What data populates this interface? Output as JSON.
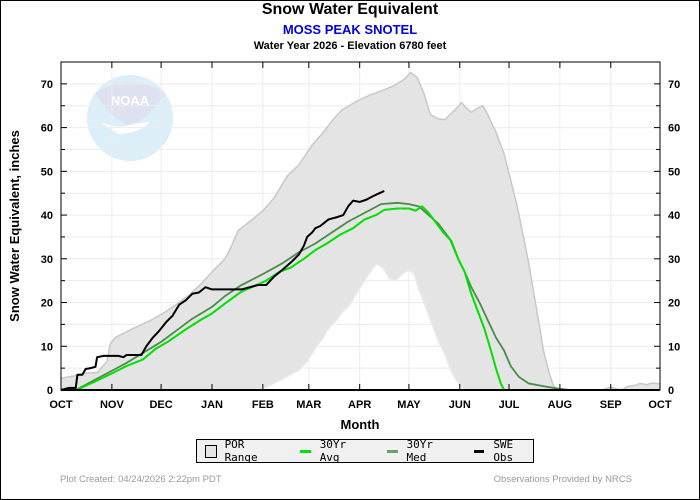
{
  "header": {
    "title": "Snow Water Equivalent",
    "station": "MOSS PEAK SNOTEL",
    "subtitle": "Water Year 2026 -  Elevation 6780 feet"
  },
  "footer": {
    "created": "Plot Created: 04/24/2026 2:22pm PDT",
    "provider": "Observations Provided by NRCS"
  },
  "watermark": {
    "text": "NOAA"
  },
  "colors": {
    "por": "#e4e4e4",
    "por_edge": "#c8c8c8",
    "avg": "#00e000",
    "med": "#4a8a4a",
    "obs": "#000000",
    "station_title": "#0000e0"
  },
  "legend": [
    {
      "label": "POR Range",
      "kind": "box"
    },
    {
      "label": "30Yr Avg",
      "kind": "line",
      "color": "#00e000"
    },
    {
      "label": "30Yr Med",
      "kind": "line",
      "color": "#6aa06a"
    },
    {
      "label": "SWE Obs",
      "kind": "line",
      "color": "#000000"
    }
  ],
  "chart_data": {
    "type": "area",
    "title": "Snow Water Equivalent",
    "xlabel": "Month",
    "ylabel": "Snow Water Equivalent, inches",
    "x_unit": "days since Oct 1",
    "xlim": [
      0,
      365
    ],
    "ylim": [
      0,
      75
    ],
    "grid": true,
    "legend_position": "bottom",
    "x_ticks": [
      {
        "day": 0,
        "label": "OCT"
      },
      {
        "day": 31,
        "label": "NOV"
      },
      {
        "day": 61,
        "label": "DEC"
      },
      {
        "day": 92,
        "label": "JAN"
      },
      {
        "day": 123,
        "label": "FEB"
      },
      {
        "day": 151,
        "label": "MAR"
      },
      {
        "day": 182,
        "label": "APR"
      },
      {
        "day": 212,
        "label": "MAY"
      },
      {
        "day": 243,
        "label": "JUN"
      },
      {
        "day": 273,
        "label": "JUL"
      },
      {
        "day": 304,
        "label": "AUG"
      },
      {
        "day": 335,
        "label": "SEP"
      },
      {
        "day": 365,
        "label": "OCT"
      }
    ],
    "y_ticks": [
      0,
      10,
      20,
      30,
      40,
      50,
      60,
      70
    ],
    "series": [
      {
        "name": "POR Range Max",
        "points": [
          [
            0,
            2.7
          ],
          [
            8,
            3.2
          ],
          [
            15,
            3.9
          ],
          [
            22,
            4.0
          ],
          [
            28,
            6.5
          ],
          [
            30,
            10.5
          ],
          [
            33,
            12
          ],
          [
            42,
            13.7
          ],
          [
            55,
            16
          ],
          [
            62,
            17.5
          ],
          [
            70,
            19.5
          ],
          [
            78,
            21.7
          ],
          [
            86,
            24.5
          ],
          [
            93,
            27.4
          ],
          [
            100,
            30
          ],
          [
            104,
            33
          ],
          [
            108,
            36.5
          ],
          [
            115,
            38.5
          ],
          [
            123,
            41
          ],
          [
            130,
            44
          ],
          [
            138,
            49
          ],
          [
            145,
            51.5
          ],
          [
            153,
            56
          ],
          [
            160,
            59
          ],
          [
            165,
            61.5
          ],
          [
            171,
            64
          ],
          [
            180,
            66
          ],
          [
            188,
            67.4
          ],
          [
            196,
            68.5
          ],
          [
            203,
            69.6
          ],
          [
            209,
            71
          ],
          [
            213,
            72.6
          ],
          [
            217,
            71.5
          ],
          [
            221,
            68
          ],
          [
            225,
            63
          ],
          [
            230,
            62
          ],
          [
            234,
            61.8
          ],
          [
            237,
            63
          ],
          [
            240,
            64
          ],
          [
            244,
            65.7
          ],
          [
            247,
            64.5
          ],
          [
            250,
            63.5
          ],
          [
            254,
            64.5
          ],
          [
            257,
            65
          ],
          [
            260,
            63
          ],
          [
            265,
            59
          ],
          [
            270,
            54
          ],
          [
            274,
            48
          ],
          [
            278,
            42
          ],
          [
            281,
            36.5
          ],
          [
            285,
            29
          ],
          [
            290,
            18
          ],
          [
            294,
            9
          ],
          [
            297,
            4.5
          ],
          [
            300,
            1
          ],
          [
            303,
            0
          ],
          [
            330,
            0
          ],
          [
            335,
            0.7
          ],
          [
            338,
            0.3
          ],
          [
            342,
            0
          ],
          [
            345,
            0.8
          ],
          [
            350,
            1.1
          ],
          [
            353,
            1.5
          ],
          [
            357,
            1.2
          ],
          [
            360,
            1.6
          ],
          [
            365,
            1.4
          ]
        ]
      },
      {
        "name": "POR Range Min",
        "points": [
          [
            0,
            0
          ],
          [
            120,
            0
          ],
          [
            125,
            0.6
          ],
          [
            135,
            2.5
          ],
          [
            145,
            4.5
          ],
          [
            150,
            6.5
          ],
          [
            155,
            9.5
          ],
          [
            160,
            12
          ],
          [
            163,
            14
          ],
          [
            168,
            16
          ],
          [
            172,
            18
          ],
          [
            176,
            19.4
          ],
          [
            180,
            22
          ],
          [
            185,
            25
          ],
          [
            189,
            27.2
          ],
          [
            192,
            28.8
          ],
          [
            196,
            28
          ],
          [
            200,
            25.5
          ],
          [
            204,
            25
          ],
          [
            208,
            26.5
          ],
          [
            212,
            27.4
          ],
          [
            215,
            26.5
          ],
          [
            218,
            23
          ],
          [
            222,
            19
          ],
          [
            226,
            15
          ],
          [
            230,
            11
          ],
          [
            234,
            8
          ],
          [
            238,
            4
          ],
          [
            242,
            1.5
          ],
          [
            246,
            0
          ],
          [
            365,
            0
          ]
        ]
      },
      {
        "name": "30Yr Avg",
        "points": [
          [
            0,
            0
          ],
          [
            10,
            0
          ],
          [
            14,
            0.8
          ],
          [
            20,
            1.8
          ],
          [
            31,
            3.8
          ],
          [
            40,
            5.5
          ],
          [
            50,
            7
          ],
          [
            58,
            9.5
          ],
          [
            65,
            11
          ],
          [
            75,
            13.6
          ],
          [
            85,
            16
          ],
          [
            92,
            17.5
          ],
          [
            100,
            19.8
          ],
          [
            110,
            22.5
          ],
          [
            118,
            23.8
          ],
          [
            125,
            25
          ],
          [
            133,
            27
          ],
          [
            140,
            28
          ],
          [
            148,
            30
          ],
          [
            155,
            32
          ],
          [
            162,
            33.5
          ],
          [
            170,
            35.5
          ],
          [
            178,
            37
          ],
          [
            185,
            39
          ],
          [
            192,
            40
          ],
          [
            197,
            41.2
          ],
          [
            205,
            41.5
          ],
          [
            212,
            41.5
          ],
          [
            216,
            41
          ],
          [
            220,
            42
          ],
          [
            224,
            40.5
          ],
          [
            228,
            38.5
          ],
          [
            233,
            36
          ],
          [
            238,
            34
          ],
          [
            242,
            30
          ],
          [
            246,
            27
          ],
          [
            250,
            22
          ],
          [
            254,
            18
          ],
          [
            258,
            14
          ],
          [
            262,
            9
          ],
          [
            265,
            5
          ],
          [
            268,
            1.5
          ],
          [
            270,
            0
          ],
          [
            365,
            0
          ]
        ]
      },
      {
        "name": "30Yr Med",
        "points": [
          [
            0,
            0
          ],
          [
            10,
            0.2
          ],
          [
            20,
            2.2
          ],
          [
            31,
            4.4
          ],
          [
            40,
            6.2
          ],
          [
            50,
            8.5
          ],
          [
            61,
            11
          ],
          [
            70,
            13.5
          ],
          [
            80,
            16.3
          ],
          [
            92,
            19
          ],
          [
            100,
            21.5
          ],
          [
            110,
            24
          ],
          [
            123,
            26.5
          ],
          [
            135,
            29
          ],
          [
            145,
            31.5
          ],
          [
            155,
            33.5
          ],
          [
            165,
            36
          ],
          [
            175,
            38.5
          ],
          [
            185,
            40.5
          ],
          [
            195,
            42.5
          ],
          [
            205,
            42.8
          ],
          [
            212,
            42.5
          ],
          [
            218,
            42
          ],
          [
            224,
            40
          ],
          [
            230,
            38
          ],
          [
            237,
            34.5
          ],
          [
            242,
            30
          ],
          [
            246,
            27
          ],
          [
            250,
            23.5
          ],
          [
            255,
            20
          ],
          [
            260,
            16
          ],
          [
            265,
            12
          ],
          [
            270,
            9
          ],
          [
            274,
            5.5
          ],
          [
            279,
            3
          ],
          [
            285,
            1.5
          ],
          [
            295,
            0.8
          ],
          [
            303,
            0.3
          ],
          [
            310,
            0
          ],
          [
            365,
            0
          ]
        ]
      },
      {
        "name": "SWE Obs",
        "points": [
          [
            0,
            0
          ],
          [
            5,
            0.5
          ],
          [
            9,
            0.5
          ],
          [
            10,
            3.5
          ],
          [
            13,
            3.5
          ],
          [
            15,
            4.8
          ],
          [
            18,
            5
          ],
          [
            21,
            5.3
          ],
          [
            22,
            7.5
          ],
          [
            26,
            7.8
          ],
          [
            31,
            7.8
          ],
          [
            35,
            7.8
          ],
          [
            38,
            7.5
          ],
          [
            40,
            8
          ],
          [
            49,
            8
          ],
          [
            52,
            10
          ],
          [
            56,
            12
          ],
          [
            60,
            13.6
          ],
          [
            64,
            15.5
          ],
          [
            68,
            17
          ],
          [
            72,
            19.5
          ],
          [
            76,
            20.5
          ],
          [
            80,
            22
          ],
          [
            84,
            22.3
          ],
          [
            88,
            23.5
          ],
          [
            92,
            23
          ],
          [
            96,
            23
          ],
          [
            102,
            23
          ],
          [
            110,
            23
          ],
          [
            115,
            23.5
          ],
          [
            120,
            24
          ],
          [
            125,
            24
          ],
          [
            130,
            26
          ],
          [
            135,
            27.5
          ],
          [
            138,
            28.5
          ],
          [
            141,
            29.5
          ],
          [
            145,
            31
          ],
          [
            148,
            33
          ],
          [
            150,
            35
          ],
          [
            153,
            36
          ],
          [
            155,
            37
          ],
          [
            158,
            37.5
          ],
          [
            163,
            39
          ],
          [
            168,
            39.5
          ],
          [
            172,
            40
          ],
          [
            175,
            42
          ],
          [
            178,
            43.3
          ],
          [
            182,
            43
          ],
          [
            186,
            43.5
          ],
          [
            190,
            44.3
          ],
          [
            194,
            45
          ],
          [
            197,
            45.5
          ]
        ]
      }
    ]
  }
}
